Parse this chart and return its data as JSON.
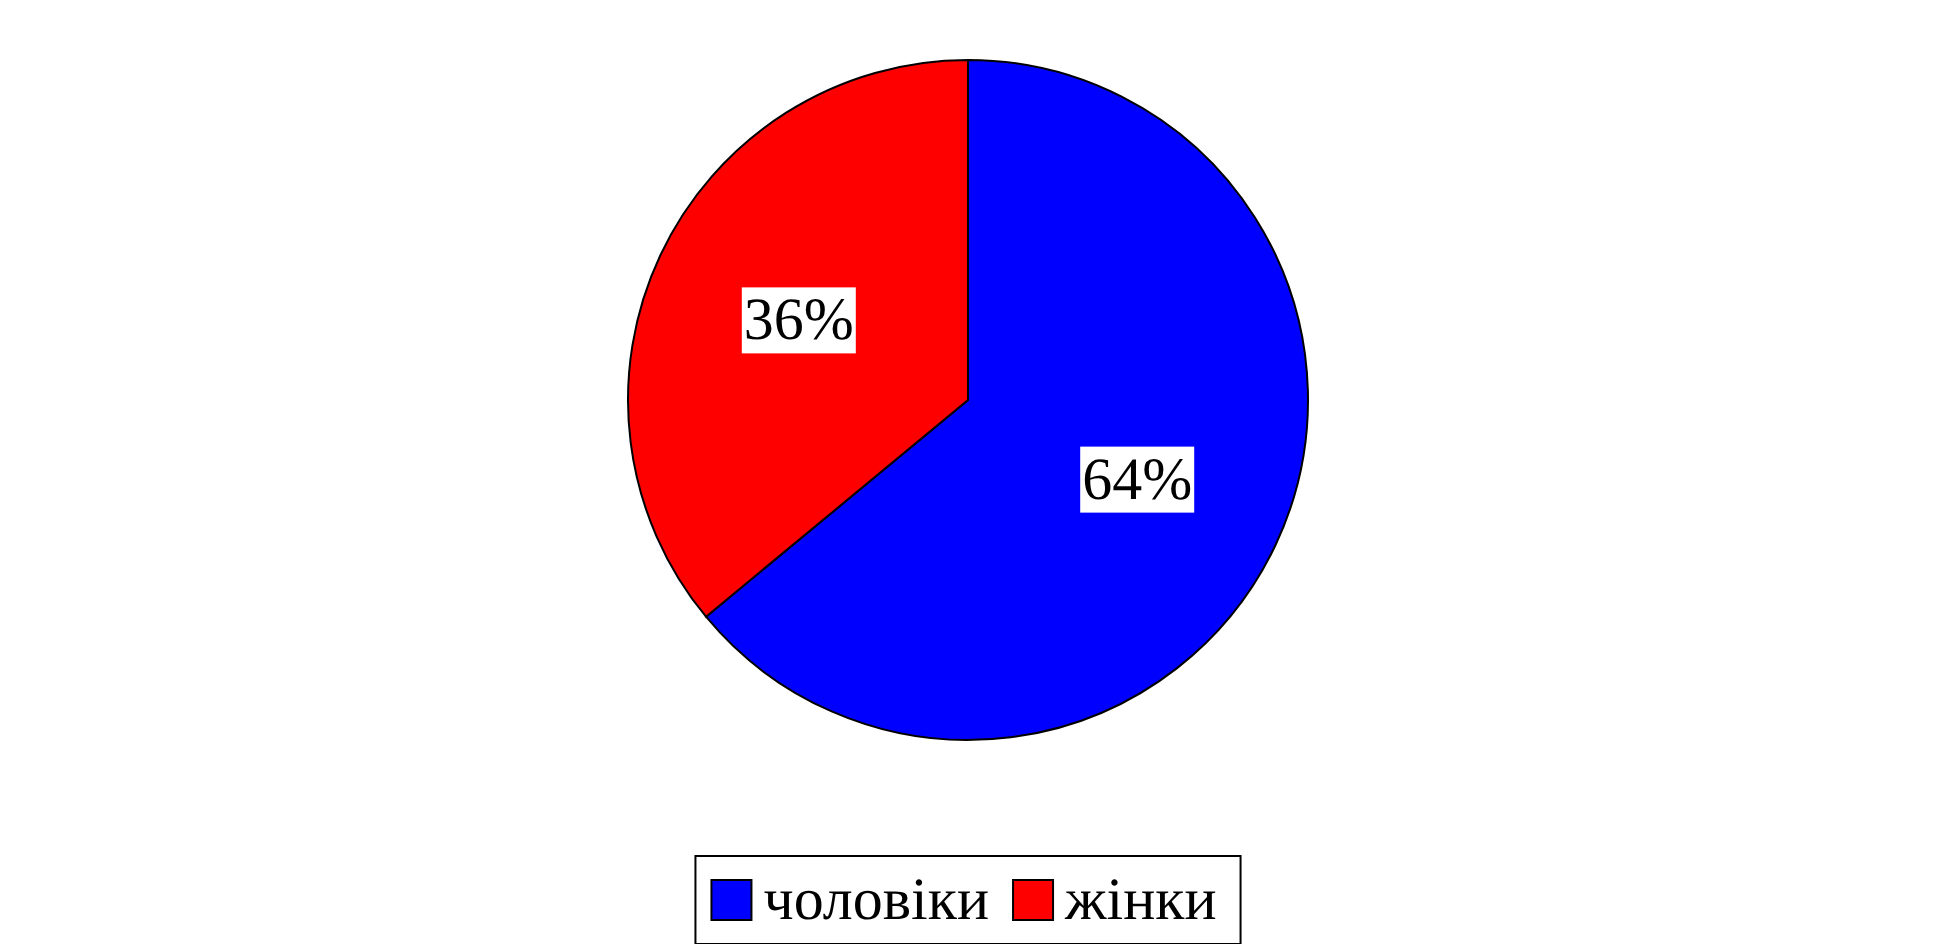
{
  "chart_data": {
    "type": "pie",
    "categories": [
      "чоловіки",
      "жінки"
    ],
    "values": [
      64,
      36
    ],
    "colors": [
      "#0000ff",
      "#ff0000"
    ],
    "value_labels": [
      "64%",
      "36%"
    ],
    "legend": "bottom"
  }
}
